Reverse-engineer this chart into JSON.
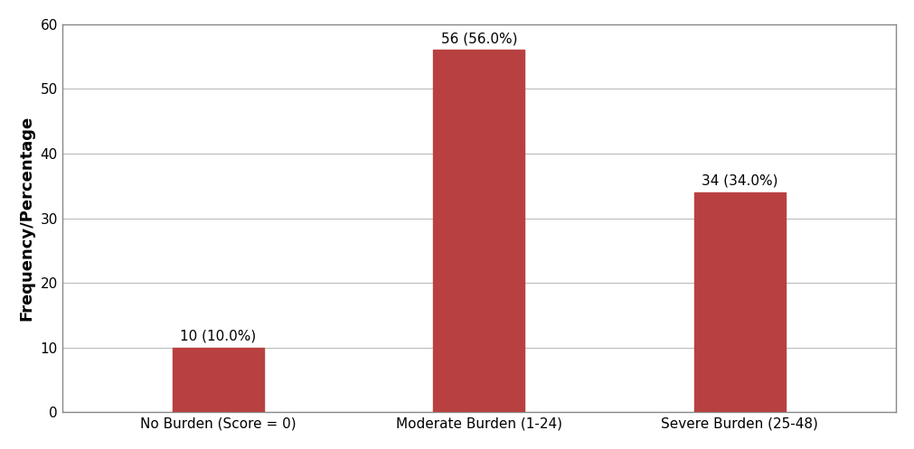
{
  "categories": [
    "No Burden (Score = 0)",
    "Moderate Burden (1-24)",
    "Severe Burden (25-48)"
  ],
  "values": [
    10,
    56,
    34
  ],
  "labels": [
    "10 (10.0%)",
    "56 (56.0%)",
    "34 (34.0%)"
  ],
  "bar_color": "#b94040",
  "ylabel": "Frequency/Percentage",
  "ylim": [
    0,
    60
  ],
  "yticks": [
    0,
    10,
    20,
    30,
    40,
    50,
    60
  ],
  "bar_width": 0.35,
  "label_fontsize": 11,
  "ylabel_fontsize": 13,
  "xtick_fontsize": 11,
  "ytick_fontsize": 11,
  "background_color": "#ffffff",
  "grid_color": "#bbbbbb",
  "spine_color": "#888888",
  "outer_border_color": "#888888"
}
